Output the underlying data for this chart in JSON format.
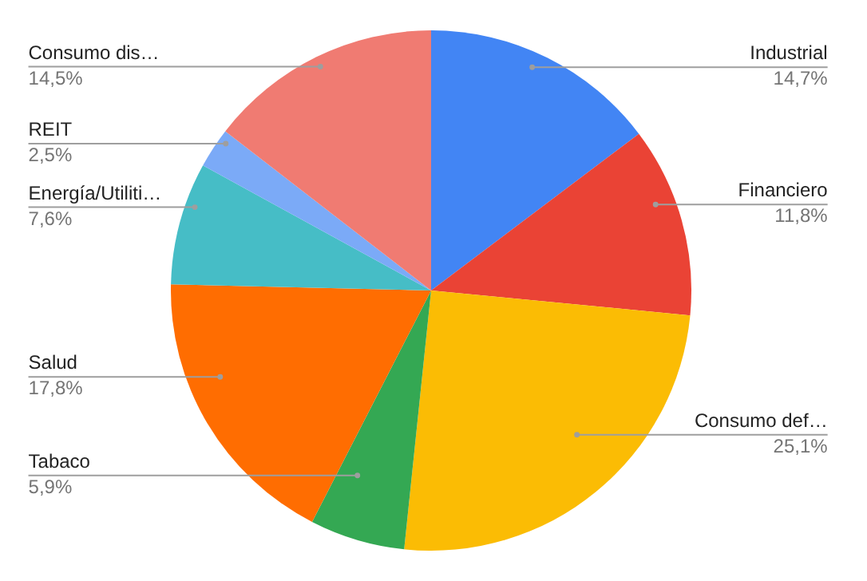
{
  "chart_data": {
    "type": "pie",
    "categories": [
      "Industrial",
      "Financiero",
      "Consumo def…",
      "Tabaco",
      "Salud",
      "Energía/Utiliti…",
      "REIT",
      "Consumo dis…"
    ],
    "values": [
      14.7,
      11.8,
      25.1,
      5.9,
      17.8,
      7.6,
      2.5,
      14.5
    ],
    "value_labels": [
      "14,7%",
      "11,8%",
      "25,1%",
      "5,9%",
      "17,8%",
      "7,6%",
      "2,5%",
      "14,5%"
    ],
    "colors": [
      "#4285f4",
      "#ea4335",
      "#fbbc04",
      "#34a853",
      "#ff6d01",
      "#46bdc6",
      "#7baaf7",
      "#f07b72"
    ]
  }
}
